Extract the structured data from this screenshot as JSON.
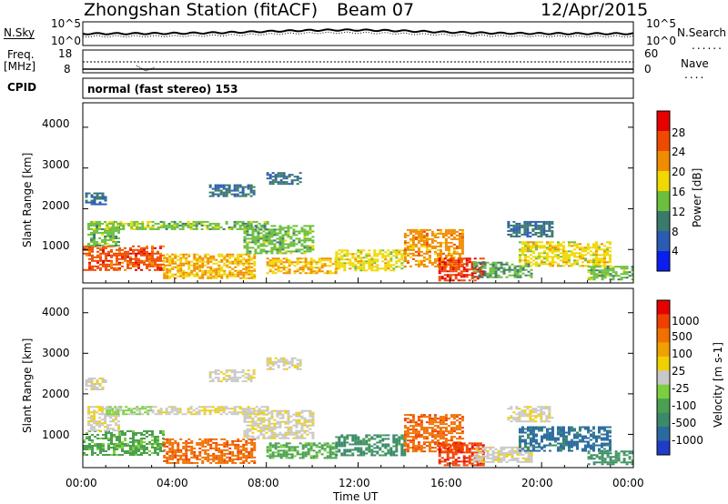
{
  "header": {
    "station": "Zhongshan Station (fitACF)",
    "beam": "Beam 07",
    "date": "12/Apr/2015"
  },
  "noise_panel": {
    "left_label": "N.Sky",
    "right_label": "N.Search",
    "left_ticks": [
      "10^5",
      "10^0"
    ],
    "right_ticks": [
      "10^5",
      "10^0"
    ]
  },
  "freq_panel": {
    "left_label_line1": "Freq.",
    "left_label_line2": "[MHz]",
    "left_ticks": [
      "18",
      "8"
    ],
    "right_label": "Nave",
    "right_ticks": [
      "60",
      "0"
    ]
  },
  "cpid": {
    "label": "CPID",
    "value": "normal (fast stereo) 153"
  },
  "chart_data": [
    {
      "type": "heatmap",
      "title": "Power",
      "ylabel": "Slant Range [km]",
      "xlabel": "Time UT",
      "ylim": [
        180,
        4600
      ],
      "xlim": [
        0,
        24
      ],
      "y_ticks": [
        "1000",
        "2000",
        "3000",
        "4000"
      ],
      "x_ticks": [
        "00:00",
        "04:00",
        "08:00",
        "12:00",
        "16:00",
        "20:00",
        "00:00"
      ],
      "colorbar_label": "Power [dB]",
      "colorbar_ticks": [
        "4",
        "8",
        "12",
        "16",
        "20",
        "24",
        "28"
      ],
      "colorbar_colors": [
        "#0a1ef0",
        "#2a5cb4",
        "#3a7a6a",
        "#6cbf3c",
        "#f0d800",
        "#f08c00",
        "#f04a00",
        "#e60000"
      ],
      "blobs": [
        {
          "t0": 0.0,
          "t1": 3.5,
          "r0": 500,
          "r1": 1100,
          "level": 24
        },
        {
          "t0": 0.2,
          "t1": 1.6,
          "r0": 1100,
          "r1": 1700,
          "level": 12
        },
        {
          "t0": 0.1,
          "t1": 1.0,
          "r0": 2100,
          "r1": 2400,
          "level": 6
        },
        {
          "t0": 1.0,
          "t1": 3.0,
          "r0": 1500,
          "r1": 1700,
          "level": 14
        },
        {
          "t0": 3.5,
          "t1": 7.5,
          "r0": 300,
          "r1": 900,
          "level": 18
        },
        {
          "t0": 3.0,
          "t1": 8.0,
          "r0": 1500,
          "r1": 1700,
          "level": 12
        },
        {
          "t0": 5.5,
          "t1": 7.5,
          "r0": 2300,
          "r1": 2600,
          "level": 6
        },
        {
          "t0": 7.0,
          "t1": 10.0,
          "r0": 900,
          "r1": 1600,
          "level": 12
        },
        {
          "t0": 8.0,
          "t1": 9.5,
          "r0": 2600,
          "r1": 2900,
          "level": 7
        },
        {
          "t0": 8.0,
          "t1": 11.0,
          "r0": 400,
          "r1": 800,
          "level": 18
        },
        {
          "t0": 11.0,
          "t1": 14.0,
          "r0": 500,
          "r1": 1000,
          "level": 16
        },
        {
          "t0": 14.0,
          "t1": 16.5,
          "r0": 600,
          "r1": 1500,
          "level": 20
        },
        {
          "t0": 15.5,
          "t1": 17.5,
          "r0": 250,
          "r1": 800,
          "level": 26
        },
        {
          "t0": 17.0,
          "t1": 19.5,
          "r0": 300,
          "r1": 700,
          "level": 10
        },
        {
          "t0": 18.5,
          "t1": 20.5,
          "r0": 1300,
          "r1": 1700,
          "level": 6
        },
        {
          "t0": 19.0,
          "t1": 23.0,
          "r0": 600,
          "r1": 1200,
          "level": 16
        },
        {
          "t0": 22.0,
          "t1": 24.0,
          "r0": 250,
          "r1": 600,
          "level": 12
        }
      ]
    },
    {
      "type": "heatmap",
      "title": "Velocity",
      "ylabel": "Slant Range [km]",
      "xlabel": "Time UT",
      "ylim": [
        180,
        4600
      ],
      "xlim": [
        0,
        24
      ],
      "y_ticks": [
        "1000",
        "2000",
        "3000",
        "4000"
      ],
      "x_ticks": [
        "00:00",
        "04:00",
        "08:00",
        "12:00",
        "16:00",
        "20:00",
        "00:00"
      ],
      "colorbar_label": "Velocity [m s-1]",
      "colorbar_ticks": [
        "1000",
        "500",
        "100",
        "25",
        "-25",
        "-100",
        "-500",
        "-1000"
      ],
      "colorbar_colors": [
        "#1e3cc8",
        "#2a6aa0",
        "#3a8a6a",
        "#4aa050",
        "#7cd040",
        "#c8c8c8",
        "#f0d000",
        "#f0a000",
        "#f07000",
        "#f04000",
        "#e60000"
      ],
      "blobs": [
        {
          "t0": 0.0,
          "t1": 3.5,
          "r0": 500,
          "r1": 1100,
          "level": 3
        },
        {
          "t0": 0.2,
          "t1": 1.6,
          "r0": 1100,
          "r1": 1700,
          "level": 5
        },
        {
          "t0": 0.1,
          "t1": 1.0,
          "r0": 2100,
          "r1": 2400,
          "level": 5
        },
        {
          "t0": 1.0,
          "t1": 3.0,
          "r0": 1500,
          "r1": 1700,
          "level": 4
        },
        {
          "t0": 3.5,
          "t1": 7.5,
          "r0": 300,
          "r1": 900,
          "level": 8
        },
        {
          "t0": 3.0,
          "t1": 8.0,
          "r0": 1500,
          "r1": 1700,
          "level": 5
        },
        {
          "t0": 5.5,
          "t1": 7.5,
          "r0": 2300,
          "r1": 2600,
          "level": 5
        },
        {
          "t0": 7.0,
          "t1": 10.0,
          "r0": 900,
          "r1": 1600,
          "level": 5
        },
        {
          "t0": 8.0,
          "t1": 9.5,
          "r0": 2600,
          "r1": 2900,
          "level": 5
        },
        {
          "t0": 8.0,
          "t1": 11.0,
          "r0": 400,
          "r1": 800,
          "level": 3
        },
        {
          "t0": 11.0,
          "t1": 14.0,
          "r0": 500,
          "r1": 1000,
          "level": 2
        },
        {
          "t0": 14.0,
          "t1": 16.5,
          "r0": 600,
          "r1": 1500,
          "level": 8
        },
        {
          "t0": 15.5,
          "t1": 17.5,
          "r0": 250,
          "r1": 800,
          "level": 9
        },
        {
          "t0": 17.0,
          "t1": 19.5,
          "r0": 300,
          "r1": 700,
          "level": 5
        },
        {
          "t0": 18.5,
          "t1": 20.5,
          "r0": 1300,
          "r1": 1700,
          "level": 5
        },
        {
          "t0": 19.0,
          "t1": 23.0,
          "r0": 600,
          "r1": 1200,
          "level": 1
        },
        {
          "t0": 22.0,
          "t1": 24.0,
          "r0": 250,
          "r1": 600,
          "level": 2
        }
      ]
    }
  ]
}
